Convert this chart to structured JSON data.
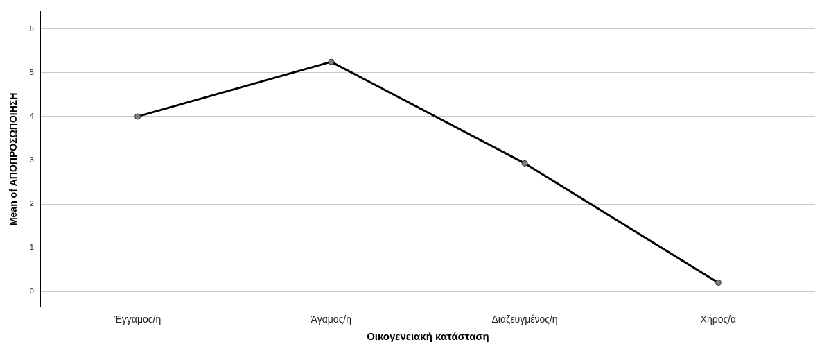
{
  "chart_data": {
    "type": "line",
    "xlabel": "Οικογενειακή κατάσταση",
    "ylabel": "Mean of ΑΠΟΠΡΟΣΩΠΟΙΗΣΗ",
    "categories": [
      "Έγγαμος/η",
      "Άγαμος/η",
      "Διαζευγμένος/η",
      "Χήρος/α"
    ],
    "series": [
      {
        "color": "#000000",
        "values": [
          4.0,
          5.25,
          2.93,
          0.2
        ]
      }
    ],
    "ylim": [
      -0.35,
      6.4
    ],
    "yticks": [
      0,
      1,
      2,
      3,
      4,
      5,
      6
    ],
    "grid": "y",
    "legend": false,
    "marker": "circle",
    "line_style": "solid"
  }
}
